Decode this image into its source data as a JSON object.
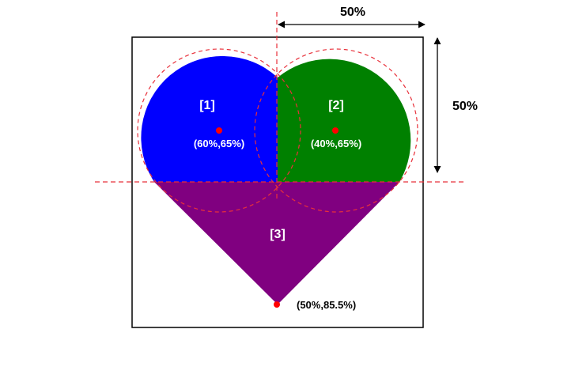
{
  "colors": {
    "left_lobe": "#0000ff",
    "right_lobe": "#008000",
    "bottom": "#800080",
    "guide": "#e8303a",
    "point": "#ff0000",
    "frame": "#000000"
  },
  "dimensions": {
    "width_label": "50%",
    "height_label": "50%"
  },
  "regions": [
    {
      "id": "left-lobe",
      "label": "[1]"
    },
    {
      "id": "right-lobe",
      "label": "[2]"
    },
    {
      "id": "bottom",
      "label": "[3]"
    }
  ],
  "points": {
    "left_center": "(60%,65%)",
    "right_center": "(40%,65%)",
    "bottom_tip": "(50%,85.5%)"
  }
}
